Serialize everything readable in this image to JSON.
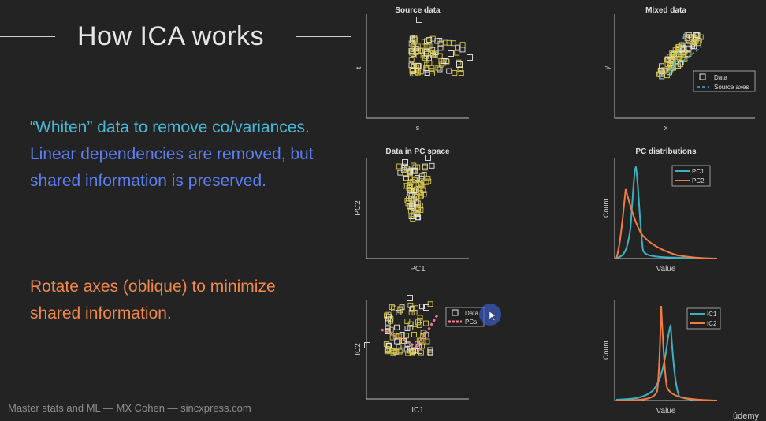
{
  "slide": {
    "title": "How ICA works",
    "paragraph1_part1": "“Whiten” data to remove co/variances.",
    "paragraph1_part2": "Linear dependencies are removed, but shared information is preserved.",
    "paragraph2": "Rotate axes (oblique) to minimize shared information.",
    "footer": "Master stats and ML — MX Cohen — sincxpress.com",
    "logo": "údemy"
  },
  "colors": {
    "text_cyan": "#48b8d6",
    "text_blue": "#5c7ef0",
    "text_orange": "#f0884a",
    "marker_yellow": "#d8c84a",
    "series_cyan": "#3fb0c4",
    "series_orange": "#f07c44",
    "pcs_pink": "#f07b8a",
    "cursor_highlight": "#3a5fcf"
  },
  "panels": [
    {
      "title": "Source data",
      "xlabel": "s",
      "ylabel": "t",
      "legend": []
    },
    {
      "title": "Mixed data",
      "xlabel": "x",
      "ylabel": "y",
      "legend": [
        "Data",
        "Source axes"
      ]
    },
    {
      "title": "Data in PC space",
      "xlabel": "PC1",
      "ylabel": "PC2",
      "legend": []
    },
    {
      "title": "PC distributions",
      "xlabel": "Value",
      "ylabel": "Count",
      "legend": [
        "PC1",
        "PC2"
      ]
    },
    {
      "title": "",
      "xlabel": "IC1",
      "ylabel": "IC2",
      "legend": [
        "Data",
        "PCs"
      ]
    },
    {
      "title": "",
      "xlabel": "Value",
      "ylabel": "Count",
      "legend": [
        "IC1",
        "IC2"
      ]
    }
  ]
}
